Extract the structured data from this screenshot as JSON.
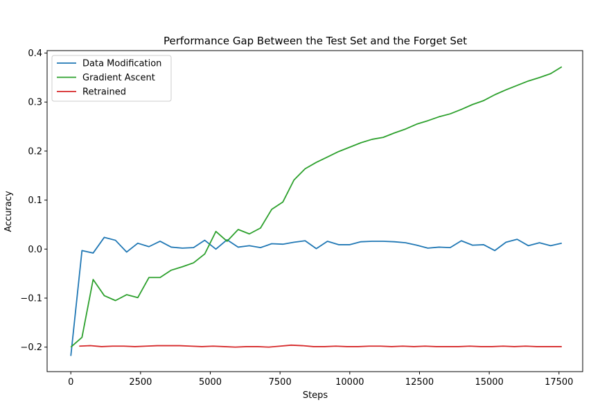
{
  "chart_data": {
    "type": "line",
    "title": "Performance Gap Between the Test Set and the Forget Set",
    "xlabel": "Steps",
    "ylabel": "Accuracy",
    "xlim": [
      -850,
      18350
    ],
    "ylim": [
      -0.25,
      0.405
    ],
    "xticks": [
      0,
      2500,
      5000,
      7500,
      10000,
      12500,
      15000,
      17500
    ],
    "xtick_labels": [
      "0",
      "2500",
      "5000",
      "7500",
      "10000",
      "12500",
      "15000",
      "17500"
    ],
    "yticks": [
      -0.2,
      -0.1,
      0.0,
      0.1,
      0.2,
      0.3,
      0.4
    ],
    "ytick_labels": [
      "−0.2",
      "−0.1",
      "0.0",
      "0.1",
      "0.2",
      "0.3",
      "0.4"
    ],
    "grid": false,
    "legend_position": "top-left",
    "series": [
      {
        "name": "Data Modification",
        "color": "#1f77b4",
        "x": [
          0,
          400,
          800,
          1200,
          1600,
          2000,
          2400,
          2800,
          3200,
          3600,
          4000,
          4400,
          4800,
          5200,
          5600,
          6000,
          6400,
          6800,
          7200,
          7600,
          8000,
          8400,
          8800,
          9200,
          9600,
          10000,
          10400,
          10800,
          11200,
          11600,
          12000,
          12400,
          12800,
          13200,
          13600,
          14000,
          14400,
          14800,
          15200,
          15600,
          16000,
          16400,
          16800,
          17200,
          17600
        ],
        "values": [
          -0.218,
          -0.003,
          -0.008,
          0.024,
          0.018,
          -0.006,
          0.012,
          0.005,
          0.016,
          0.004,
          0.002,
          0.003,
          0.018,
          0.0,
          0.019,
          0.004,
          0.007,
          0.003,
          0.011,
          0.01,
          0.014,
          0.017,
          0.001,
          0.016,
          0.009,
          0.009,
          0.015,
          0.016,
          0.016,
          0.015,
          0.013,
          0.008,
          0.002,
          0.004,
          0.003,
          0.017,
          0.008,
          0.009,
          -0.003,
          0.014,
          0.02,
          0.007,
          0.013,
          0.007,
          0.012
        ]
      },
      {
        "name": "Gradient Ascent",
        "color": "#2ca02c",
        "x": [
          0,
          400,
          800,
          1200,
          1600,
          2000,
          2400,
          2800,
          3200,
          3600,
          4000,
          4400,
          4800,
          5200,
          5600,
          6000,
          6400,
          6800,
          7200,
          7600,
          8000,
          8400,
          8800,
          9200,
          9600,
          10000,
          10400,
          10800,
          11200,
          11600,
          12000,
          12400,
          12800,
          13200,
          13600,
          14000,
          14400,
          14800,
          15200,
          15600,
          16000,
          16400,
          16800,
          17200,
          17600
        ],
        "values": [
          -0.2,
          -0.18,
          -0.062,
          -0.095,
          -0.105,
          -0.093,
          -0.099,
          -0.058,
          -0.058,
          -0.043,
          -0.036,
          -0.028,
          -0.01,
          0.036,
          0.016,
          0.04,
          0.031,
          0.043,
          0.081,
          0.096,
          0.141,
          0.164,
          0.177,
          0.188,
          0.199,
          0.208,
          0.217,
          0.224,
          0.228,
          0.237,
          0.245,
          0.255,
          0.262,
          0.27,
          0.276,
          0.285,
          0.295,
          0.303,
          0.315,
          0.325,
          0.334,
          0.343,
          0.35,
          0.358,
          0.372
        ]
      },
      {
        "name": "Retrained",
        "color": "#d62728",
        "x": [
          300,
          700,
          1100,
          1500,
          1900,
          2300,
          2700,
          3100,
          3500,
          3900,
          4300,
          4700,
          5100,
          5500,
          5900,
          6300,
          6700,
          7100,
          7500,
          7900,
          8300,
          8700,
          9100,
          9500,
          9900,
          10300,
          10700,
          11100,
          11500,
          11900,
          12300,
          12700,
          13100,
          13500,
          13900,
          14300,
          14700,
          15100,
          15500,
          15900,
          16300,
          16700,
          17100,
          17600
        ],
        "values": [
          -0.198,
          -0.197,
          -0.199,
          -0.198,
          -0.198,
          -0.199,
          -0.198,
          -0.197,
          -0.197,
          -0.197,
          -0.198,
          -0.199,
          -0.198,
          -0.199,
          -0.2,
          -0.199,
          -0.199,
          -0.2,
          -0.198,
          -0.196,
          -0.197,
          -0.199,
          -0.199,
          -0.198,
          -0.199,
          -0.199,
          -0.198,
          -0.198,
          -0.199,
          -0.198,
          -0.199,
          -0.198,
          -0.199,
          -0.199,
          -0.199,
          -0.198,
          -0.199,
          -0.199,
          -0.198,
          -0.199,
          -0.198,
          -0.199,
          -0.199,
          -0.199
        ]
      }
    ]
  }
}
